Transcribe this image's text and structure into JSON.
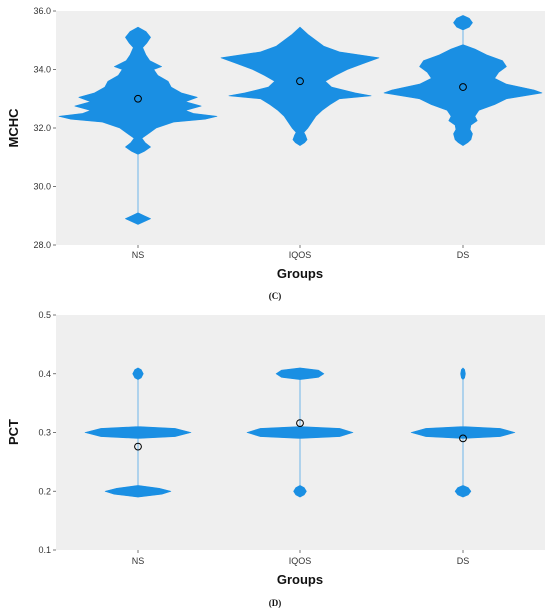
{
  "chart_data": [
    {
      "type": "violin",
      "panel_label": "(C)",
      "xlabel": "Groups",
      "ylabel": "MCHC",
      "ylim": [
        28.0,
        36.0
      ],
      "yticks": [
        "28.0",
        "30.0",
        "32.0",
        "34.0",
        "36.0"
      ],
      "categories": [
        "NS",
        "IQOS",
        "DS"
      ],
      "means": [
        33.0,
        33.6,
        33.4
      ],
      "fill_color": "#1a8fe3",
      "background": "#efefef",
      "series": [
        {
          "category": "NS",
          "density": [
            [
              28.7,
              0.0
            ],
            [
              28.8,
              0.08
            ],
            [
              28.9,
              0.16
            ],
            [
              29.0,
              0.08
            ],
            [
              29.1,
              0.0
            ],
            [
              31.1,
              0.0
            ],
            [
              31.2,
              0.08
            ],
            [
              31.35,
              0.16
            ],
            [
              31.5,
              0.09
            ],
            [
              31.65,
              0.05
            ],
            [
              31.8,
              0.13
            ],
            [
              32.0,
              0.23
            ],
            [
              32.2,
              0.45
            ],
            [
              32.3,
              0.85
            ],
            [
              32.4,
              1.0
            ],
            [
              32.5,
              0.7
            ],
            [
              32.6,
              0.6
            ],
            [
              32.75,
              0.8
            ],
            [
              32.9,
              0.6
            ],
            [
              33.05,
              0.75
            ],
            [
              33.2,
              0.55
            ],
            [
              33.4,
              0.42
            ],
            [
              33.6,
              0.38
            ],
            [
              33.8,
              0.25
            ],
            [
              34.0,
              0.2
            ],
            [
              34.1,
              0.3
            ],
            [
              34.3,
              0.15
            ],
            [
              34.5,
              0.1
            ],
            [
              34.75,
              0.06
            ],
            [
              34.9,
              0.11
            ],
            [
              35.1,
              0.16
            ],
            [
              35.3,
              0.1
            ],
            [
              35.45,
              0.0
            ]
          ]
        },
        {
          "category": "IQOS",
          "density": [
            [
              31.4,
              0.0
            ],
            [
              31.5,
              0.06
            ],
            [
              31.6,
              0.09
            ],
            [
              31.75,
              0.07
            ],
            [
              31.85,
              0.05
            ],
            [
              32.0,
              0.1
            ],
            [
              32.2,
              0.15
            ],
            [
              32.4,
              0.2
            ],
            [
              32.6,
              0.28
            ],
            [
              32.8,
              0.38
            ],
            [
              33.0,
              0.5
            ],
            [
              33.1,
              0.9
            ],
            [
              33.2,
              0.7
            ],
            [
              33.4,
              0.4
            ],
            [
              33.6,
              0.32
            ],
            [
              33.8,
              0.45
            ],
            [
              34.0,
              0.6
            ],
            [
              34.2,
              0.8
            ],
            [
              34.4,
              1.0
            ],
            [
              34.6,
              0.5
            ],
            [
              34.8,
              0.3
            ],
            [
              35.0,
              0.2
            ],
            [
              35.2,
              0.1
            ],
            [
              35.45,
              0.0
            ]
          ]
        },
        {
          "category": "DS",
          "density": [
            [
              31.4,
              0.0
            ],
            [
              31.5,
              0.06
            ],
            [
              31.6,
              0.1
            ],
            [
              31.8,
              0.12
            ],
            [
              31.95,
              0.09
            ],
            [
              32.1,
              0.1
            ],
            [
              32.25,
              0.18
            ],
            [
              32.4,
              0.15
            ],
            [
              32.6,
              0.2
            ],
            [
              32.8,
              0.4
            ],
            [
              33.0,
              0.55
            ],
            [
              33.2,
              1.0
            ],
            [
              33.3,
              0.9
            ],
            [
              33.5,
              0.55
            ],
            [
              33.7,
              0.4
            ],
            [
              33.9,
              0.45
            ],
            [
              34.1,
              0.55
            ],
            [
              34.3,
              0.5
            ],
            [
              34.5,
              0.3
            ],
            [
              34.7,
              0.15
            ],
            [
              34.85,
              0.0
            ],
            [
              35.35,
              0.0
            ],
            [
              35.45,
              0.08
            ],
            [
              35.6,
              0.12
            ],
            [
              35.75,
              0.08
            ],
            [
              35.85,
              0.0
            ]
          ]
        }
      ]
    },
    {
      "type": "violin",
      "panel_label": "(D)",
      "xlabel": "Groups",
      "ylabel": "PCT",
      "ylim": [
        0.1,
        0.5
      ],
      "yticks": [
        "0.1",
        "0.2",
        "0.3",
        "0.4",
        "0.5"
      ],
      "categories": [
        "NS",
        "IQOS",
        "DS"
      ],
      "means": [
        0.276,
        0.316,
        0.29
      ],
      "fill_color": "#1a8fe3",
      "background": "#efefef",
      "series": [
        {
          "category": "NS",
          "density": [
            [
              0.19,
              0.0
            ],
            [
              0.195,
              0.45
            ],
            [
              0.2,
              0.62
            ],
            [
              0.205,
              0.4
            ],
            [
              0.21,
              0.0
            ],
            [
              0.29,
              0.0
            ],
            [
              0.293,
              0.7
            ],
            [
              0.3,
              1.0
            ],
            [
              0.307,
              0.7
            ],
            [
              0.31,
              0.0
            ],
            [
              0.39,
              0.0
            ],
            [
              0.393,
              0.06
            ],
            [
              0.4,
              0.1
            ],
            [
              0.407,
              0.06
            ],
            [
              0.41,
              0.0
            ]
          ]
        },
        {
          "category": "IQOS",
          "density": [
            [
              0.19,
              0.0
            ],
            [
              0.194,
              0.08
            ],
            [
              0.2,
              0.12
            ],
            [
              0.206,
              0.08
            ],
            [
              0.21,
              0.0
            ],
            [
              0.29,
              0.0
            ],
            [
              0.293,
              0.75
            ],
            [
              0.3,
              1.0
            ],
            [
              0.307,
              0.75
            ],
            [
              0.31,
              0.0
            ],
            [
              0.39,
              0.0
            ],
            [
              0.394,
              0.35
            ],
            [
              0.4,
              0.45
            ],
            [
              0.406,
              0.35
            ],
            [
              0.41,
              0.0
            ]
          ]
        },
        {
          "category": "DS",
          "density": [
            [
              0.19,
              0.0
            ],
            [
              0.194,
              0.1
            ],
            [
              0.2,
              0.15
            ],
            [
              0.206,
              0.1
            ],
            [
              0.21,
              0.0
            ],
            [
              0.29,
              0.0
            ],
            [
              0.293,
              0.7
            ],
            [
              0.3,
              0.98
            ],
            [
              0.307,
              0.7
            ],
            [
              0.31,
              0.0
            ],
            [
              0.39,
              0.0
            ],
            [
              0.393,
              0.03
            ],
            [
              0.4,
              0.045
            ],
            [
              0.407,
              0.03
            ],
            [
              0.41,
              0.0
            ]
          ]
        }
      ]
    }
  ]
}
